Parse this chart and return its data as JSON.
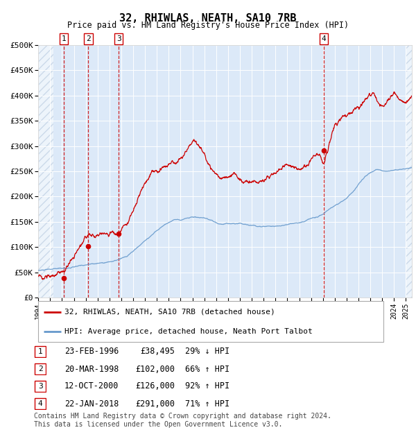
{
  "title": "32, RHIWLAS, NEATH, SA10 7RB",
  "subtitle": "Price paid vs. HM Land Registry's House Price Index (HPI)",
  "ylim": [
    0,
    500000
  ],
  "yticks": [
    0,
    50000,
    100000,
    150000,
    200000,
    250000,
    300000,
    350000,
    400000,
    450000,
    500000
  ],
  "ytick_labels": [
    "£0",
    "£50K",
    "£100K",
    "£150K",
    "£200K",
    "£250K",
    "£300K",
    "£350K",
    "£400K",
    "£450K",
    "£500K"
  ],
  "background_color": "#dce9f8",
  "grid_color": "#ffffff",
  "red_line_color": "#cc0000",
  "blue_line_color": "#6699cc",
  "sale_dates": [
    1996.14,
    1998.22,
    2000.79,
    2018.06
  ],
  "sale_prices": [
    38495,
    102000,
    126000,
    291000
  ],
  "sale_labels": [
    "1",
    "2",
    "3",
    "4"
  ],
  "legend_red": "32, RHIWLAS, NEATH, SA10 7RB (detached house)",
  "legend_blue": "HPI: Average price, detached house, Neath Port Talbot",
  "table_rows": [
    [
      "1",
      "23-FEB-1996",
      "£38,495",
      "29% ↓ HPI"
    ],
    [
      "2",
      "20-MAR-1998",
      "£102,000",
      "66% ↑ HPI"
    ],
    [
      "3",
      "12-OCT-2000",
      "£126,000",
      "92% ↑ HPI"
    ],
    [
      "4",
      "22-JAN-2018",
      "£291,000",
      "71% ↑ HPI"
    ]
  ],
  "footer": "Contains HM Land Registry data © Crown copyright and database right 2024.\nThis data is licensed under the Open Government Licence v3.0.",
  "xmin": 1994.0,
  "xmax": 2025.5
}
